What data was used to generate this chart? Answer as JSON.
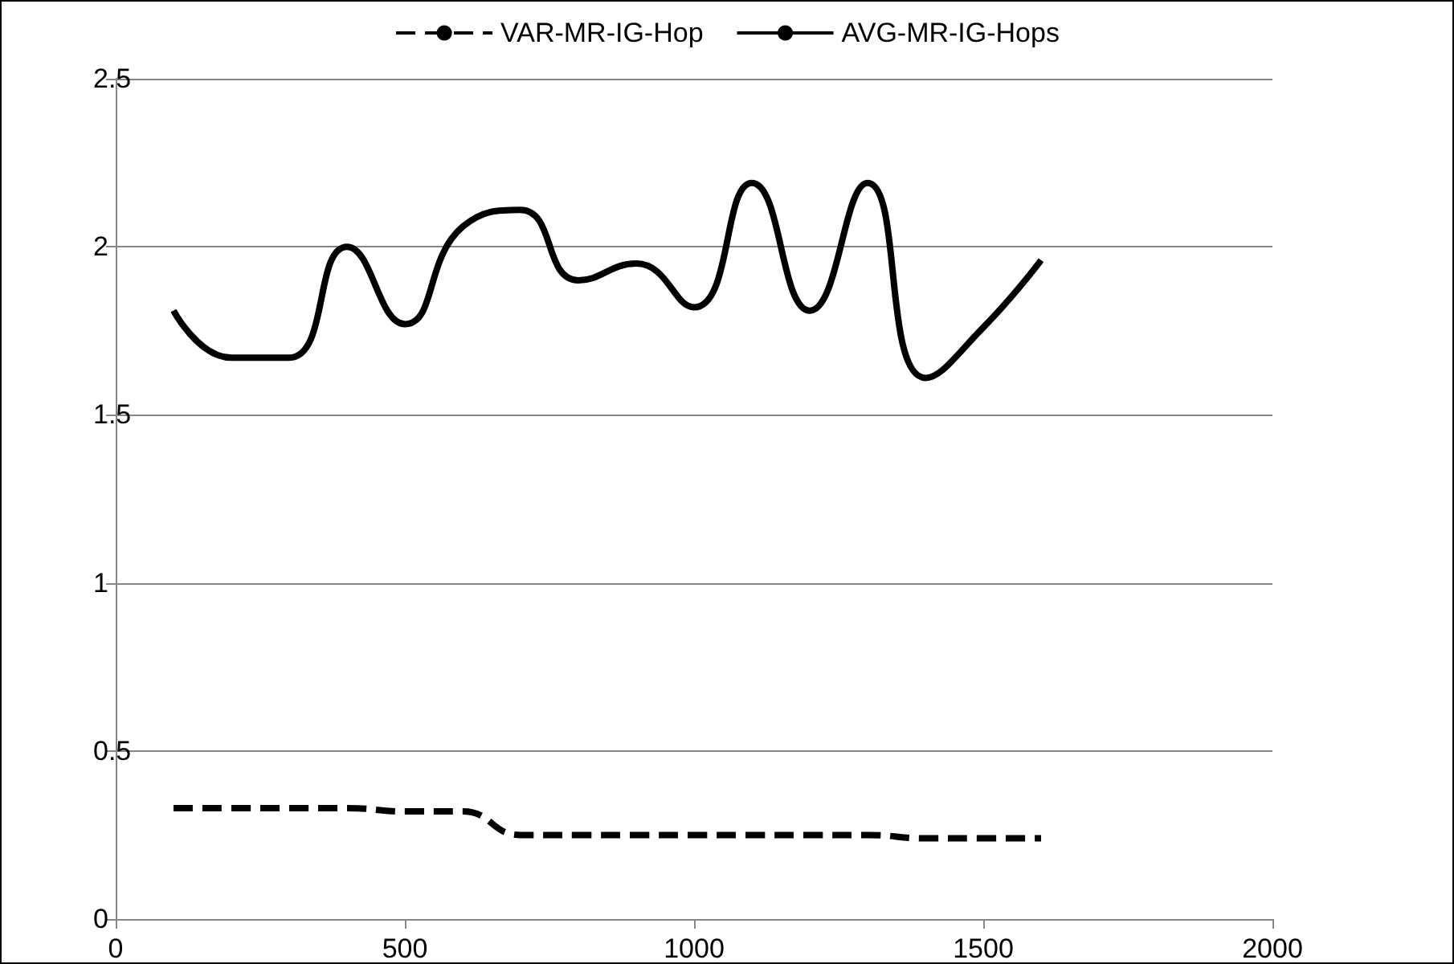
{
  "chart_data": {
    "type": "line",
    "x": [
      100,
      200,
      300,
      400,
      500,
      600,
      700,
      800,
      900,
      1000,
      1100,
      1200,
      1300,
      1400,
      1500,
      1600
    ],
    "series": [
      {
        "name": "VAR-MR-IG-Hop",
        "color": "#000000",
        "line_style": "dashed",
        "values": [
          0.33,
          0.33,
          0.33,
          0.33,
          0.32,
          0.32,
          0.25,
          0.25,
          0.25,
          0.25,
          0.25,
          0.25,
          0.25,
          0.24,
          0.24,
          0.24
        ]
      },
      {
        "name": "AVG-MR-IG-Hops",
        "color": "#000000",
        "line_style": "solid",
        "values": [
          1.81,
          1.67,
          1.67,
          2.0,
          1.77,
          2.06,
          2.11,
          1.9,
          1.95,
          1.82,
          2.19,
          1.81,
          2.19,
          1.61,
          1.76,
          1.96
        ]
      }
    ],
    "xlim": [
      0,
      2000
    ],
    "xticks": [
      0,
      500,
      1000,
      1500,
      2000
    ],
    "ylim": [
      0,
      2.5
    ],
    "yticks": [
      0,
      0.5,
      1,
      1.5,
      2,
      2.5
    ],
    "grid": "y",
    "legend": "top",
    "marker": "none"
  }
}
